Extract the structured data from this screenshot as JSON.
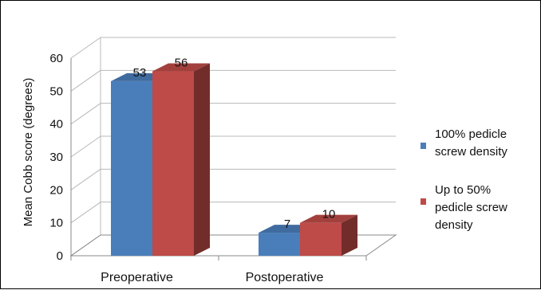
{
  "chart_data": {
    "type": "bar",
    "style": "3d-clustered-column",
    "categories": [
      "Preoperative",
      "Postoperative"
    ],
    "series": [
      {
        "name": "100% pedicle screw density",
        "color": "#4a7ebb",
        "values": [
          53,
          7
        ]
      },
      {
        "name": "Up to 50% pedicle screw density",
        "color": "#be4b48",
        "values": [
          56,
          10
        ]
      }
    ],
    "ylabel": "Mean Cobb score (degrees)",
    "ylim": [
      0,
      60
    ],
    "yticks": [
      0,
      10,
      20,
      30,
      40,
      50,
      60
    ],
    "grid": true,
    "legend_position": "right",
    "data_labels": true
  }
}
